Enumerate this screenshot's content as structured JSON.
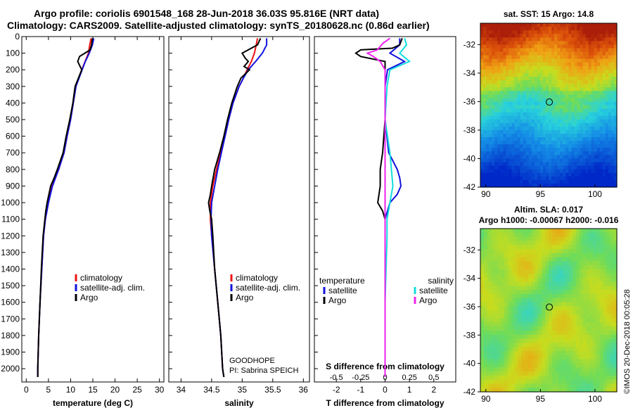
{
  "header": {
    "line1": "Argo profile: coriolis 6901548_168 28-Jun-2018 36.03S 95.816E (NRT data)",
    "line2": "Climatology: CARS2009. Satellite-adjusted climatology: synTS_20180628.nc (0.86d earlier)"
  },
  "credit": "©IMOS 20-Dec-2018 00:05:28",
  "colors": {
    "climatology": "#ee1111",
    "satellite": "#1111dd",
    "argo": "#000000",
    "sat_salinity": "#11dddd",
    "argo_salinity": "#ee22ee"
  },
  "chart_data": [
    {
      "type": "line",
      "id": "temperature",
      "xlabel": "temperature (deg C)",
      "ylabel": "depth",
      "xlim": [
        -1,
        31
      ],
      "ylim": [
        2080,
        0
      ],
      "xticks": [
        0,
        5,
        10,
        15,
        20,
        25,
        30
      ],
      "yticks": [
        0,
        100,
        200,
        300,
        400,
        500,
        600,
        700,
        800,
        900,
        1000,
        1100,
        1200,
        1300,
        1400,
        1500,
        1600,
        1700,
        1800,
        1900,
        2000
      ],
      "legend": [
        "climatology",
        "satellite-adj. clim.",
        "Argo"
      ],
      "series": [
        {
          "name": "climatology",
          "depth": [
            10,
            50,
            100,
            200,
            300,
            400,
            500,
            600,
            700,
            800,
            900,
            1000,
            1100,
            1200,
            1400,
            1600,
            1800,
            2000,
            2050
          ],
          "values": [
            14.6,
            14.3,
            14.0,
            12.5,
            11.2,
            10.6,
            10.0,
            9.2,
            8.5,
            7.3,
            5.8,
            5.0,
            4.3,
            3.9,
            3.5,
            3.1,
            2.8,
            2.6,
            2.6
          ]
        },
        {
          "name": "satellite-adj. clim.",
          "depth": [
            10,
            50,
            100,
            150,
            200,
            300,
            400,
            500,
            600,
            700,
            800,
            900,
            1000,
            1100,
            1200,
            1400,
            1600,
            1800,
            2000,
            2050
          ],
          "values": [
            15.2,
            14.9,
            14.2,
            13.3,
            12.6,
            11.2,
            10.6,
            10.0,
            9.2,
            8.5,
            7.3,
            5.9,
            5.0,
            4.3,
            3.9,
            3.5,
            3.1,
            2.8,
            2.6,
            2.6
          ]
        },
        {
          "name": "Argo",
          "depth": [
            10,
            50,
            80,
            120,
            150,
            200,
            300,
            400,
            500,
            600,
            700,
            800,
            850,
            900,
            1000,
            1050,
            1100,
            1200,
            1400,
            1600,
            1800,
            2000,
            2050
          ],
          "values": [
            14.9,
            14.7,
            14.4,
            12.0,
            11.6,
            12.5,
            11.0,
            10.5,
            9.8,
            9.0,
            8.3,
            7.0,
            6.3,
            5.5,
            4.7,
            4.4,
            4.2,
            3.8,
            3.4,
            3.1,
            2.8,
            2.6,
            2.6
          ]
        }
      ]
    },
    {
      "type": "line",
      "id": "salinity",
      "xlabel": "salinity",
      "xlim": [
        33.8,
        36.1
      ],
      "ylim": [
        2080,
        0
      ],
      "xticks": [
        34,
        34.5,
        35,
        35.5,
        36
      ],
      "legend": [
        "climatology",
        "satellite-adj. clim.",
        "Argo"
      ],
      "annotation": [
        "GOODHOPE",
        "PI: Sabrina SPEICH"
      ],
      "series": [
        {
          "name": "climatology",
          "depth": [
            10,
            50,
            100,
            150,
            200,
            250,
            300,
            400,
            500,
            600,
            700,
            800,
            900,
            1000,
            1100,
            1200,
            1400,
            1600,
            1800,
            2000,
            2050
          ],
          "values": [
            35.25,
            35.23,
            35.2,
            35.15,
            35.08,
            35.02,
            34.95,
            34.85,
            34.78,
            34.72,
            34.65,
            34.58,
            34.52,
            34.48,
            34.48,
            34.5,
            34.55,
            34.6,
            34.65,
            34.68,
            34.7
          ]
        },
        {
          "name": "satellite-adj. clim.",
          "depth": [
            10,
            50,
            100,
            150,
            200,
            250,
            300,
            400,
            500,
            600,
            700,
            800,
            900,
            1000,
            1100,
            1200,
            1400,
            1600,
            1800,
            2000,
            2050
          ],
          "values": [
            35.4,
            35.4,
            35.33,
            35.22,
            35.1,
            35.02,
            34.95,
            34.85,
            34.78,
            34.72,
            34.66,
            34.6,
            34.55,
            34.5,
            34.49,
            34.5,
            34.55,
            34.6,
            34.65,
            34.68,
            34.7
          ]
        },
        {
          "name": "Argo",
          "depth": [
            10,
            50,
            80,
            100,
            130,
            150,
            180,
            200,
            250,
            300,
            400,
            500,
            600,
            700,
            800,
            900,
            950,
            1000,
            1050,
            1100,
            1200,
            1400,
            1600,
            1800,
            2000,
            2050
          ],
          "values": [
            35.3,
            35.25,
            35.1,
            35.0,
            35.05,
            35.1,
            35.03,
            35.12,
            34.98,
            34.92,
            34.83,
            34.76,
            34.7,
            34.63,
            34.55,
            34.5,
            34.48,
            34.45,
            34.47,
            34.5,
            34.52,
            34.55,
            34.6,
            34.65,
            34.68,
            34.7
          ]
        }
      ]
    },
    {
      "type": "line",
      "id": "difference",
      "xlabel": "T difference from climatology",
      "xlabel_top": "S difference from climatology",
      "xlim": [
        -2.9,
        2.9
      ],
      "ylim": [
        2080,
        0
      ],
      "xticks": [
        -2,
        -1,
        0,
        1,
        2
      ],
      "xticks_salinity": [
        -0.5,
        -0.25,
        0,
        0.25,
        0.5
      ],
      "legend_temperature_title": "temperature",
      "legend_salinity_title": "salinity",
      "legend": [
        "satellite",
        "Argo",
        "satellite",
        "Argo"
      ],
      "series": [
        {
          "name": "T satellite",
          "depth": [
            10,
            50,
            100,
            150,
            200,
            300,
            500,
            700,
            800,
            850,
            900,
            950,
            1000,
            1100,
            1200,
            1400,
            1600,
            1800,
            2000,
            2050
          ],
          "values": [
            0.6,
            0.6,
            0.2,
            0.8,
            0.1,
            0.0,
            0.0,
            0.15,
            0.5,
            0.6,
            0.65,
            0.5,
            0.2,
            0.0,
            0.0,
            0.0,
            0.0,
            0.0,
            0.0,
            0.0
          ]
        },
        {
          "name": "T Argo",
          "depth": [
            10,
            50,
            70,
            80,
            100,
            120,
            150,
            200,
            250,
            300,
            500,
            700,
            800,
            900,
            1000,
            1050,
            1100,
            1200,
            1400,
            1600,
            1800,
            2000,
            2050
          ],
          "values": [
            0.7,
            0.6,
            0.3,
            -1.0,
            -1.2,
            -1.0,
            0.0,
            0.0,
            0.0,
            0.0,
            0.0,
            -0.1,
            -0.2,
            -0.2,
            -0.3,
            -0.1,
            0.0,
            0.0,
            0.0,
            0.0,
            0.0,
            0.0,
            0.0
          ]
        },
        {
          "name": "S satellite",
          "depth": [
            10,
            50,
            100,
            150,
            200,
            300,
            500,
            700,
            900,
            1000,
            1100,
            1200,
            1400,
            1600,
            1800,
            2000,
            2050
          ],
          "values": [
            0.2,
            0.22,
            0.15,
            0.25,
            0.05,
            0.02,
            0.0,
            0.05,
            0.08,
            0.05,
            0.02,
            0.02,
            0.01,
            0.0,
            0.0,
            0.0,
            0.0
          ]
        },
        {
          "name": "S Argo",
          "depth": [
            10,
            40,
            80,
            100,
            120,
            150,
            200,
            300,
            500,
            700,
            900,
            1000,
            1100,
            1200,
            1400,
            1600,
            1800,
            2000,
            2050
          ],
          "values": [
            0.05,
            -0.02,
            -0.08,
            -0.18,
            -0.12,
            -0.05,
            0.0,
            0.0,
            0.0,
            0.0,
            0.0,
            0.0,
            0.0,
            0.0,
            0.0,
            0.0,
            0.0,
            0.0,
            0.0
          ]
        }
      ]
    },
    {
      "type": "heatmap",
      "id": "sst-map",
      "title": "sat. SST: 15 Argo: 14.8",
      "xlim": [
        89.5,
        102
      ],
      "ylim": [
        -42,
        -30.5
      ],
      "xticks": [
        90,
        95,
        100
      ],
      "yticks": [
        -32,
        -34,
        -36,
        -38,
        -40,
        -42
      ],
      "marker": {
        "lon": 95.816,
        "lat": -36.03
      }
    },
    {
      "type": "heatmap",
      "id": "sla-map",
      "title": "Altim. SLA: 0.017",
      "subtitle": "Argo h1000: -0.00067 h2000: -0.016",
      "xlim": [
        89.5,
        102
      ],
      "ylim": [
        -42,
        -30.5
      ],
      "xticks": [
        90,
        95,
        100
      ],
      "yticks": [
        -32,
        -34,
        -36,
        -38,
        -40,
        -42
      ],
      "marker": {
        "lon": 95.816,
        "lat": -36.03
      }
    }
  ]
}
